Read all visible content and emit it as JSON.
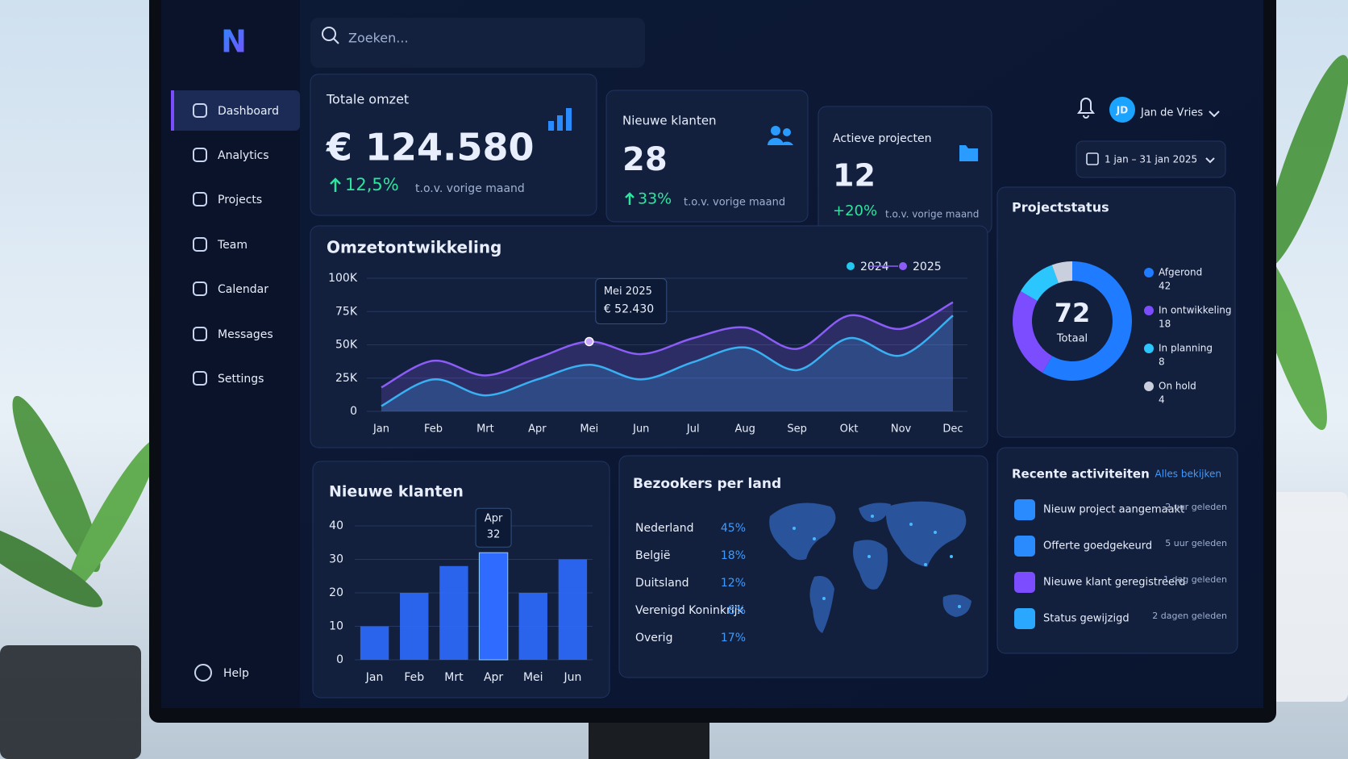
{
  "logo": "N",
  "search": "Zoeken...",
  "nav": [
    "Dashboard",
    "Analytics",
    "Projects",
    "Team",
    "Calendar",
    "Messages",
    "Settings"
  ],
  "help": "Help",
  "user": {
    "initials": "JD",
    "name": "Jan de Vries"
  },
  "date_range": "1 jan – 31 jan 2025",
  "kpis": [
    {
      "title": "Totale omzet",
      "value": "€ 124.580",
      "change": "12,5%",
      "note": "t.o.v. vorige maand"
    },
    {
      "title": "Nieuwe klanten",
      "value": "28",
      "change": "33%",
      "note": "t.o.v. vorige maand"
    },
    {
      "title": "Actieve projecten",
      "value": "12",
      "change": "+20%",
      "note": "t.o.v. vorige maand"
    }
  ],
  "chart_data": [
    {
      "type": "line",
      "title": "Omzetontwikkeling",
      "categories": [
        "Jan",
        "Feb",
        "Mrt",
        "Apr",
        "Mei",
        "Jun",
        "Jul",
        "Aug",
        "Sep",
        "Okt",
        "Nov",
        "Dec"
      ],
      "series": [
        {
          "name": "2024",
          "color": "#22c8f0",
          "values": [
            4000,
            24000,
            12000,
            24000,
            35000,
            24000,
            37000,
            48000,
            31000,
            55000,
            42000,
            72000
          ]
        },
        {
          "name": "2025",
          "color": "#8b5cf6",
          "values": [
            18000,
            38000,
            27000,
            40000,
            52430,
            43000,
            55000,
            63000,
            47000,
            72000,
            62000,
            82000
          ]
        }
      ],
      "ylim": [
        0,
        100000
      ],
      "yticks": [
        {
          "value": 0,
          "label": "0"
        },
        {
          "value": 25000,
          "label": "25K"
        },
        {
          "value": 50000,
          "label": "50K"
        },
        {
          "value": 75000,
          "label": "75K"
        },
        {
          "value": 100000,
          "label": "100K"
        }
      ],
      "grid": true,
      "tooltip": {
        "index": 4,
        "title": "Mei 2025",
        "label": "€ 52.430"
      }
    },
    {
      "type": "bar",
      "title": "Nieuwe klanten",
      "categories": [
        "Jan",
        "Feb",
        "Mrt",
        "Apr",
        "Mei",
        "Jun"
      ],
      "values": [
        10,
        20,
        28,
        32,
        20,
        30
      ],
      "color": "#2f6bff",
      "ylim": [
        0,
        40
      ],
      "yticks": [
        0,
        10,
        20,
        30,
        40
      ],
      "grid": true,
      "highlight": 3
    },
    {
      "type": "pie",
      "title": "Projectstatus",
      "categories": [
        "Afgerond",
        "In ontwikkeling",
        "In planning",
        "On hold"
      ],
      "values": [
        42,
        18,
        8,
        4
      ],
      "colors": [
        "#1f7bff",
        "#7c4dff",
        "#2cc6ff",
        "#c9cfdc"
      ],
      "center_value": 72,
      "center_label": "Totaal"
    }
  ],
  "visitors": {
    "title": "Bezookers per land",
    "rows": [
      [
        "Nederland",
        "45%"
      ],
      [
        "België",
        "18%"
      ],
      [
        "Duitsland",
        "12%"
      ],
      [
        "Verenigd Koninkrijk",
        "8%"
      ],
      [
        "Overig",
        "17%"
      ]
    ]
  },
  "activities": {
    "title": "Recente activiteiten",
    "link": "Alles bekijken",
    "items": [
      {
        "text": "Nieuw project aangemaakt",
        "time": "2 uur geleden"
      },
      {
        "text": "Offerte goedgekeurd",
        "time": "5 uur geleden"
      },
      {
        "text": "Nieuwe klant geregistreerd",
        "time": "1 dag geleden"
      },
      {
        "text": "Status gewijzigd",
        "time": "2 dagen geleden"
      }
    ]
  }
}
